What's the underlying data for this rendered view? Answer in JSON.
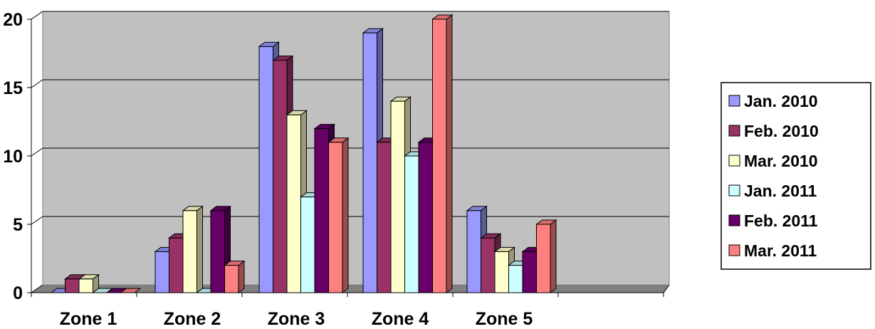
{
  "chart_data": {
    "type": "bar",
    "style": "3d-clustered-column",
    "categories": [
      "Zone 1",
      "Zone 2",
      "Zone 3",
      "Zone 4",
      "Zone 5"
    ],
    "series": [
      {
        "name": "Jan. 2010",
        "color": "#9999FF",
        "values": [
          0,
          3,
          18,
          19,
          6
        ]
      },
      {
        "name": "Feb. 2010",
        "color": "#993366",
        "values": [
          1,
          4,
          17,
          11,
          4
        ]
      },
      {
        "name": "Mar. 2010",
        "color": "#FFFFCC",
        "values": [
          1,
          6,
          13,
          14,
          3
        ]
      },
      {
        "name": "Jan. 2011",
        "color": "#CCFFFF",
        "values": [
          0,
          0,
          7,
          10,
          2
        ]
      },
      {
        "name": "Feb. 2011",
        "color": "#660066",
        "values": [
          0,
          6,
          12,
          11,
          3
        ]
      },
      {
        "name": "Mar. 2011",
        "color": "#FF8080",
        "values": [
          0,
          2,
          11,
          20,
          5
        ]
      }
    ],
    "title": "",
    "xlabel": "",
    "ylabel": "",
    "ylim": [
      0,
      20
    ],
    "yticks": [
      0,
      5,
      10,
      15,
      20
    ],
    "grid": true,
    "background_color": "#C0C0C0",
    "legend_position": "right"
  }
}
